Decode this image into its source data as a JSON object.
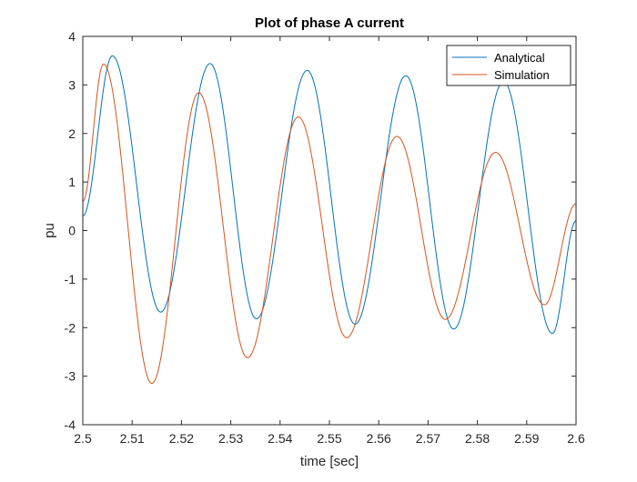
{
  "chart_data": {
    "type": "line",
    "title": "Plot of phase A current",
    "xlabel": "time [sec]",
    "ylabel": "pu",
    "xlim": [
      2.5,
      2.6
    ],
    "ylim": [
      -4,
      4
    ],
    "xticks": [
      2.5,
      2.51,
      2.52,
      2.53,
      2.54,
      2.55,
      2.56,
      2.57,
      2.58,
      2.59,
      2.6
    ],
    "xtick_labels": [
      "2.5",
      "2.51",
      "2.52",
      "2.53",
      "2.54",
      "2.55",
      "2.56",
      "2.57",
      "2.58",
      "2.59",
      "2.6"
    ],
    "yticks": [
      -4,
      -3,
      -2,
      -1,
      0,
      1,
      2,
      3,
      4
    ],
    "ytick_labels": [
      "-4",
      "-3",
      "-2",
      "-1",
      "0",
      "1",
      "2",
      "3",
      "4"
    ],
    "grid": false,
    "legend_position": "top-right",
    "series": [
      {
        "name": "Analytical",
        "color": "#0072BD",
        "x": [
          2.5,
          2.506,
          2.5158,
          2.5258,
          2.5352,
          2.5455,
          2.5552,
          2.5655,
          2.5752,
          2.5853,
          2.5952,
          2.6
        ],
        "y": [
          0.3,
          3.6,
          -1.68,
          3.44,
          -1.82,
          3.3,
          -1.93,
          3.19,
          -2.03,
          3.07,
          -2.12,
          0.2
        ]
      },
      {
        "name": "Simulation",
        "color": "#D95319",
        "x": [
          2.5,
          2.5042,
          2.514,
          2.5235,
          2.5334,
          2.5437,
          2.5535,
          2.5637,
          2.5735,
          2.5837,
          2.5936,
          2.6
        ],
        "y": [
          0.6,
          3.43,
          -3.15,
          2.84,
          -2.62,
          2.34,
          -2.21,
          1.94,
          -1.83,
          1.61,
          -1.53,
          0.55
        ]
      }
    ]
  }
}
